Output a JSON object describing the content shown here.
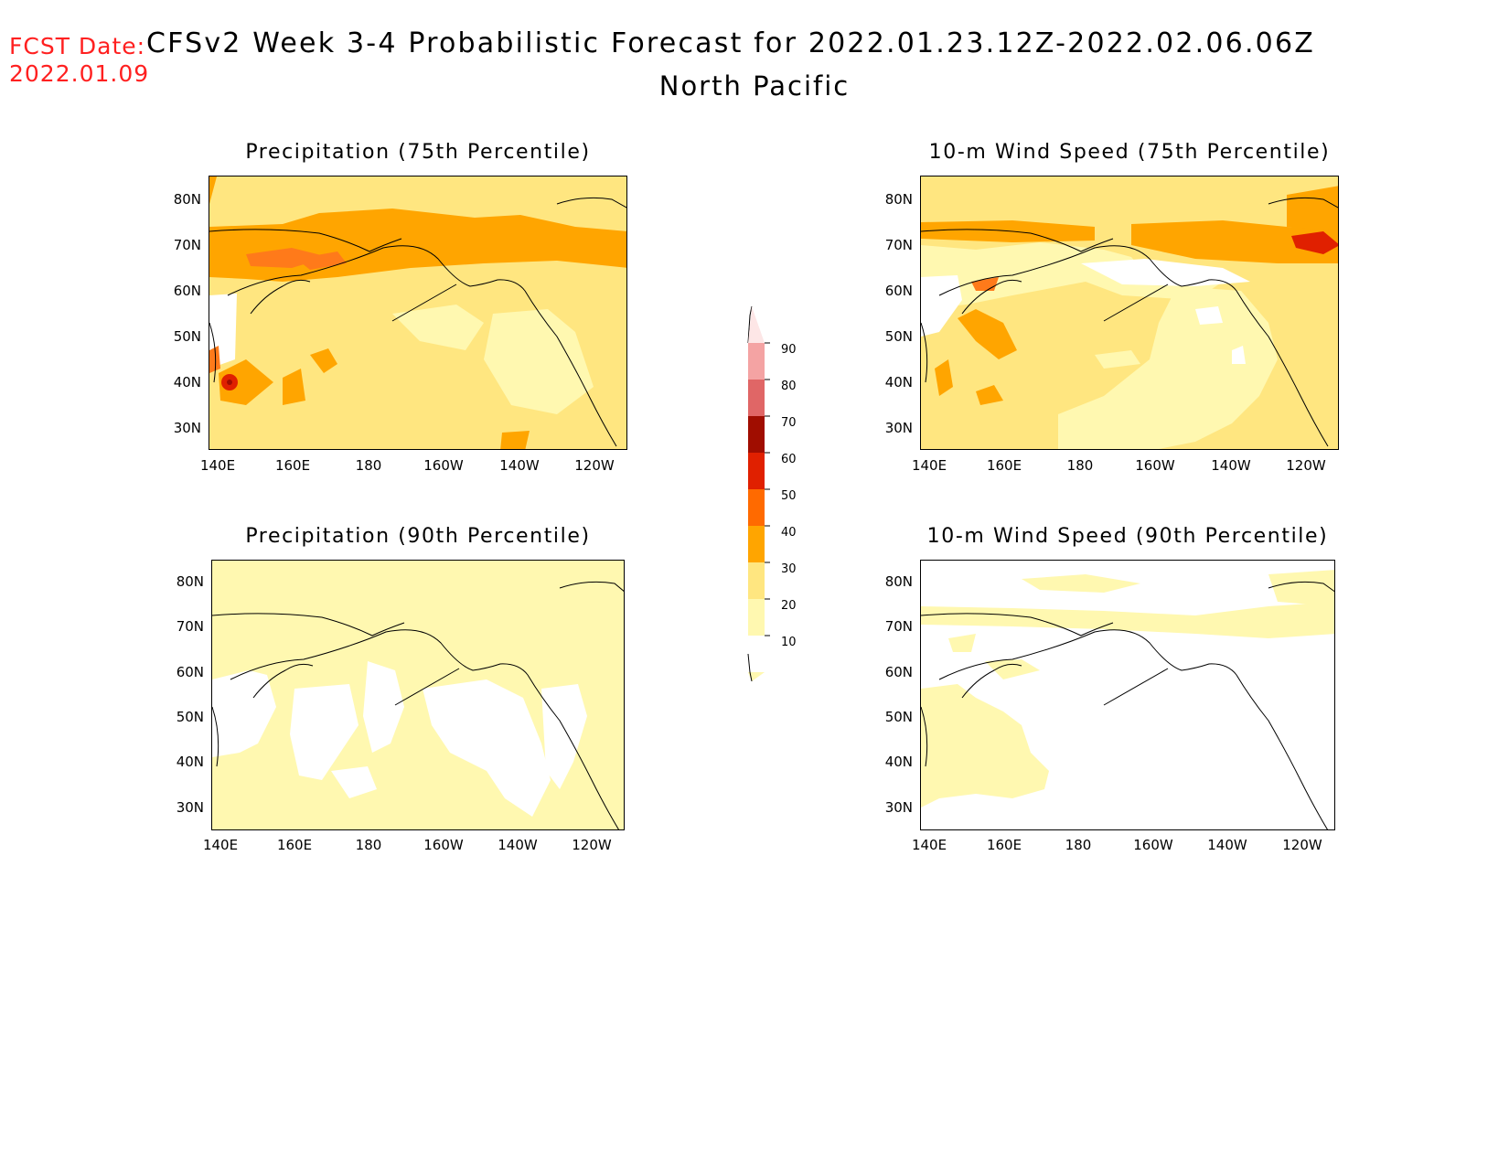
{
  "header": {
    "fcst_label": "FCST Date:",
    "fcst_date": "2022.01.09",
    "title": "CFSv2 Week 3-4 Probabilistic Forecast for 2022.01.23.12Z-2022.02.06.06Z",
    "subtitle": "North Pacific"
  },
  "panels": [
    {
      "title": "Precipitation (75th Percentile)"
    },
    {
      "title": "10-m Wind Speed (75th Percentile)"
    },
    {
      "title": "Precipitation (90th Percentile)"
    },
    {
      "title": "10-m Wind Speed (90th Percentile)"
    }
  ],
  "axes": {
    "lat_labels": [
      "80N",
      "70N",
      "60N",
      "50N",
      "40N",
      "30N"
    ],
    "lon_labels": [
      "140E",
      "160E",
      "180",
      "160W",
      "140W",
      "120W"
    ]
  },
  "colorbar": {
    "labels": [
      "90",
      "80",
      "70",
      "60",
      "50",
      "40",
      "30",
      "20",
      "10"
    ],
    "colors": [
      "#fde6e6",
      "#f4a3a3",
      "#e06666",
      "#a00d00",
      "#e02000",
      "#ff6a00",
      "#ffa500",
      "#ffe680",
      "#fff8b0"
    ]
  }
}
